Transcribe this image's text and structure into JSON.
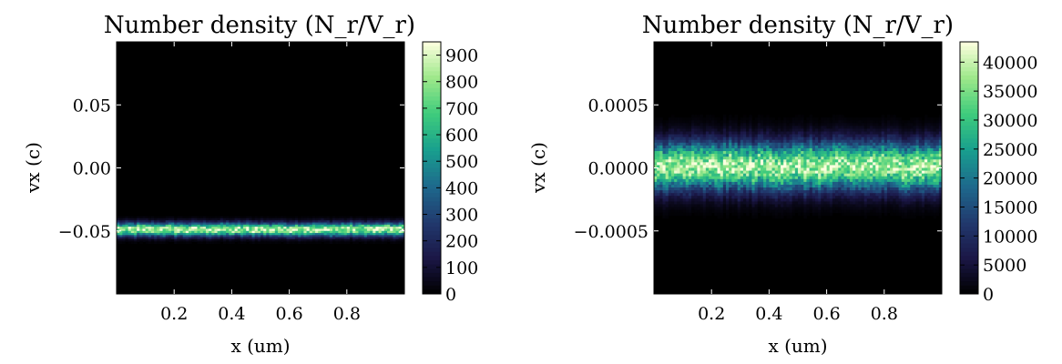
{
  "chart_data": [
    {
      "type": "heatmap",
      "title": "Number density (N_r/V_r)",
      "xlabel": "x (um)",
      "ylabel": "vx (c)",
      "xlim": [
        0.0,
        1.0
      ],
      "ylim": [
        -0.1,
        0.1
      ],
      "x_ticks": [
        0.2,
        0.4,
        0.6,
        0.8
      ],
      "x_tick_labels": [
        "0.2",
        "0.4",
        "0.6",
        "0.8"
      ],
      "y_ticks": [
        0.05,
        0.0,
        -0.05
      ],
      "y_tick_labels": [
        "0.05",
        "0.00",
        "−0.05"
      ],
      "colorbar": {
        "range": [
          0,
          950
        ],
        "ticks": [
          0,
          100,
          200,
          300,
          400,
          500,
          600,
          700,
          800,
          900
        ],
        "tick_labels": [
          "0",
          "100",
          "200",
          "300",
          "400",
          "500",
          "600",
          "700",
          "800",
          "900"
        ]
      },
      "band": {
        "center": -0.049,
        "width": 0.0035,
        "peak": 900
      },
      "colormap": [
        "#000000",
        "#1b1747",
        "#213a6e",
        "#1e6a8d",
        "#18a08e",
        "#3fcc7c",
        "#9ee88a",
        "#ffffe0"
      ],
      "grid": false
    },
    {
      "type": "heatmap",
      "title": "Number density (N_r/V_r)",
      "xlabel": "x (um)",
      "ylabel": "vx (c)",
      "xlim": [
        0.0,
        1.0
      ],
      "ylim": [
        -0.001,
        0.001
      ],
      "x_ticks": [
        0.2,
        0.4,
        0.6,
        0.8
      ],
      "x_tick_labels": [
        "0.2",
        "0.4",
        "0.6",
        "0.8"
      ],
      "y_ticks": [
        0.0005,
        0.0,
        -0.0005
      ],
      "y_tick_labels": [
        "0.0005",
        "0.0000",
        "−0.0005"
      ],
      "colorbar": {
        "range": [
          0,
          43500
        ],
        "ticks": [
          0,
          5000,
          10000,
          15000,
          20000,
          25000,
          30000,
          35000,
          40000
        ],
        "tick_labels": [
          "0",
          "5000",
          "10000",
          "15000",
          "20000",
          "25000",
          "30000",
          "35000",
          "40000"
        ]
      },
      "band": {
        "center": 1e-05,
        "width": 0.00013,
        "peak": 40000
      },
      "colormap": [
        "#000000",
        "#1b1747",
        "#213a6e",
        "#1e6a8d",
        "#18a08e",
        "#3fcc7c",
        "#9ee88a",
        "#ffffe0"
      ],
      "grid": false
    }
  ]
}
